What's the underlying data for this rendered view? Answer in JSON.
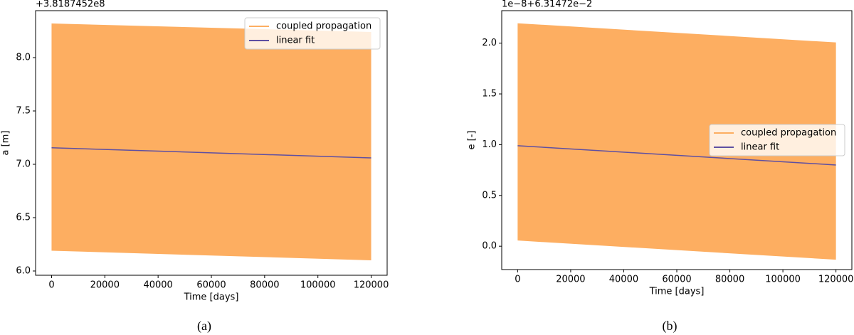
{
  "chart_data": [
    {
      "type": "band-line",
      "caption": "(a)",
      "offset_label": "+3.8187452e8",
      "xlabel": "Time [days]",
      "ylabel": "a [m]",
      "x": [
        0,
        120000
      ],
      "series": [
        {
          "name": "coupled propagation",
          "color": "#fdae61",
          "upper": [
            8.32,
            8.24
          ],
          "lower": [
            6.19,
            6.1
          ]
        },
        {
          "name": "linear fit",
          "color": "#5e4fa2",
          "values": [
            7.155,
            7.06
          ]
        }
      ],
      "xlim": [
        -6000,
        126000
      ],
      "xticks": [
        0,
        20000,
        40000,
        60000,
        80000,
        100000,
        120000
      ],
      "ylim": [
        5.96,
        8.44
      ],
      "yticks": [
        {
          "value": 6,
          "label": "6.0"
        },
        6.5,
        {
          "value": 7,
          "label": "7.0"
        },
        7.5,
        {
          "value": 8,
          "label": "8.0"
        }
      ],
      "legend": "upper right"
    },
    {
      "type": "band-line",
      "caption": "(b)",
      "offset_label": "1e−8+6.31472e−2",
      "xlabel": "Time [days]",
      "ylabel": "e [-]",
      "x": [
        0,
        120000
      ],
      "series": [
        {
          "name": "coupled propagation",
          "color": "#fdae61",
          "upper": [
            2.196,
            2.007
          ],
          "lower": [
            0.056,
            -0.133
          ]
        },
        {
          "name": "linear fit",
          "color": "#5e4fa2",
          "values": [
            0.99,
            0.8
          ]
        }
      ],
      "xlim": [
        -6000,
        126000
      ],
      "xticks": [
        0,
        20000,
        40000,
        60000,
        80000,
        100000,
        120000
      ],
      "ylim": [
        -0.23,
        2.32
      ],
      "yticks": [
        {
          "value": 0,
          "label": "0.0"
        },
        0.5,
        {
          "value": 1,
          "label": "1.0"
        },
        1.5,
        {
          "value": 2,
          "label": "2.0"
        }
      ],
      "legend": "center right"
    }
  ]
}
